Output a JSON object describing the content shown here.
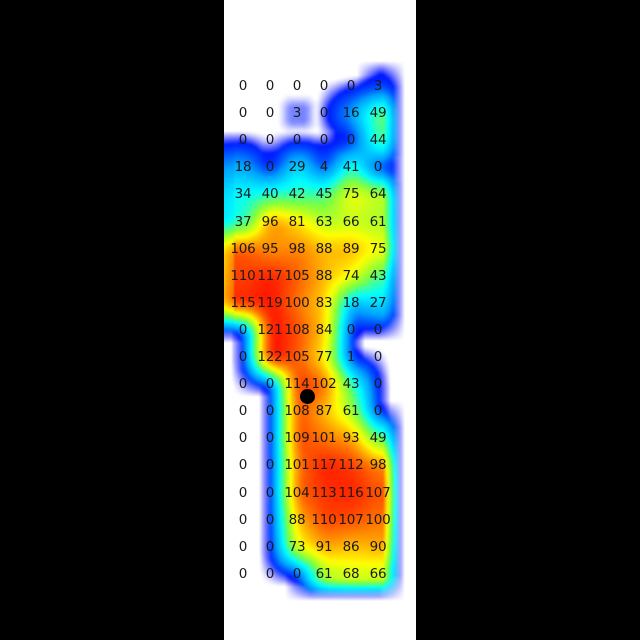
{
  "chart_data": {
    "type": "heatmap",
    "rows": [
      [
        0,
        0,
        0,
        0,
        0,
        3
      ],
      [
        0,
        0,
        3,
        0,
        16,
        49
      ],
      [
        0,
        0,
        0,
        0,
        0,
        44
      ],
      [
        18,
        0,
        29,
        4,
        41,
        0
      ],
      [
        34,
        40,
        42,
        45,
        75,
        64
      ],
      [
        37,
        96,
        81,
        63,
        66,
        61
      ],
      [
        106,
        95,
        98,
        88,
        89,
        75
      ],
      [
        110,
        117,
        105,
        88,
        74,
        43
      ],
      [
        115,
        119,
        100,
        83,
        18,
        27
      ],
      [
        0,
        121,
        108,
        84,
        0,
        0
      ],
      [
        0,
        122,
        105,
        77,
        1,
        0
      ],
      [
        0,
        0,
        114,
        102,
        43,
        0
      ],
      [
        0,
        0,
        108,
        87,
        61,
        0
      ],
      [
        0,
        0,
        109,
        101,
        93,
        49
      ],
      [
        0,
        0,
        101,
        117,
        112,
        98
      ],
      [
        0,
        0,
        104,
        113,
        116,
        107
      ],
      [
        0,
        0,
        88,
        110,
        107,
        100
      ],
      [
        0,
        0,
        73,
        91,
        86,
        90
      ],
      [
        0,
        0,
        0,
        61,
        68,
        66
      ]
    ],
    "colormap": [
      "#0000ff",
      "#00a0ff",
      "#00ffff",
      "#80ff40",
      "#ffff00",
      "#ff8000",
      "#ff0000"
    ],
    "marker": {
      "row": 11.5,
      "col": 2.5,
      "color": "#000000"
    }
  }
}
